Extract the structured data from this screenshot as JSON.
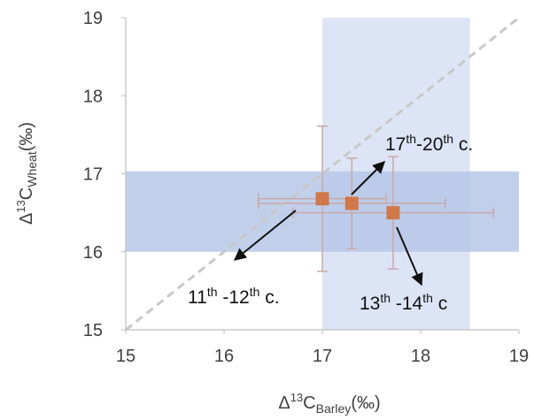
{
  "chart_data": {
    "type": "scatter",
    "xlim": [
      15,
      19
    ],
    "ylim": [
      15,
      19
    ],
    "x_ticks": [
      "15",
      "16",
      "17",
      "18",
      "19"
    ],
    "y_ticks": [
      "15",
      "16",
      "17",
      "18",
      "19"
    ],
    "xlabel": {
      "main": "Δ",
      "sup": "13",
      "c": "C",
      "sub": "Barley",
      "unit": "(‰)"
    },
    "ylabel": {
      "main": "Δ",
      "sup": "13",
      "c": "C",
      "sub": "Wheat",
      "unit": "(‰)"
    },
    "grid": false,
    "reference_line": {
      "type": "1:1",
      "from": [
        15,
        15
      ],
      "to": [
        19,
        19
      ],
      "color": "#c8c8c8",
      "dashed": true
    },
    "bands": [
      {
        "orientation": "vertical",
        "range": [
          17.0,
          18.5
        ],
        "color": "#dde4f5"
      },
      {
        "orientation": "horizontal",
        "range": [
          16.0,
          17.03
        ],
        "color": "#b6c7e8"
      }
    ],
    "points": [
      {
        "x": 17.0,
        "y": 16.68,
        "x_err": 0.65,
        "y_err": 0.93,
        "label": "11th-12th c."
      },
      {
        "x": 17.3,
        "y": 16.62,
        "x_err": 0.95,
        "y_err": 0.58,
        "label": "17th-20th c."
      },
      {
        "x": 17.72,
        "y": 16.5,
        "x_err": 1.02,
        "y_err": 0.72,
        "label": "13th-14th c"
      }
    ],
    "marker_color": "#d0784a",
    "error_color": "#c9a9a9",
    "annotations": [
      {
        "p1": "11",
        "s1": "th",
        "mid": " -12",
        "s2": "th",
        "end": " c."
      },
      {
        "p1": "17",
        "s1": "th",
        "mid": "-20",
        "s2": "th",
        "end": " c."
      },
      {
        "p1": "13",
        "s1": "th",
        "mid": " -14",
        "s2": "th",
        "end": " c"
      }
    ]
  }
}
